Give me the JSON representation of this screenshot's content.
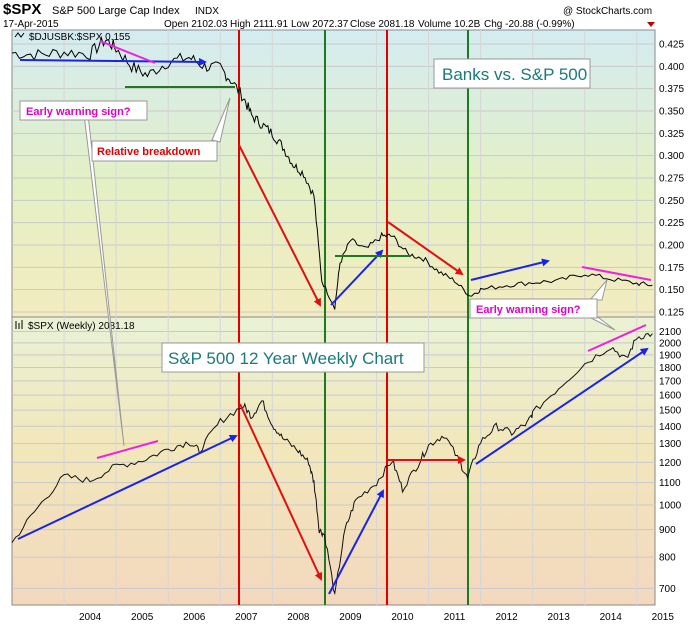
{
  "header": {
    "symbol": "$SPX",
    "name": "S&P 500 Large Cap Index",
    "exchange": "INDX",
    "date": "17-Apr-2015",
    "copyright": "@ StockCharts.com",
    "open": "Open 2102.03",
    "high": "High 2111.91",
    "low": "Low 2072.37",
    "close": "Close 2081.18",
    "volume": "Volume 10.2B",
    "chg": "Chg -20.88 (-0.99%)"
  },
  "colors": {
    "top_gradient_top": "#d4ecf2",
    "top_gradient_mid": "#e4f0c4",
    "top_gradient_bottom": "#f3ecc0",
    "bottom_gradient_top": "#e9f2d6",
    "bottom_gradient_mid": "#f2e7bb",
    "bottom_gradient_bottom": "#f3d8be",
    "red_line": "#e00000",
    "green_line": "#1e7a1e",
    "blue_arrow": "#1a24e6",
    "red_arrow": "#e01010",
    "magenta": "#f020e0",
    "title_text": "#1a7a7a",
    "callout_text": "#e000c8",
    "red_text": "#e00000"
  },
  "annotations": {
    "top_title": "Banks vs. S&P 500",
    "bottom_title": "S&P 500 12 Year Weekly Chart",
    "early_warning_1": "Early warning sign?",
    "relative_breakdown": "Relative breakdown",
    "early_warning_2": "Early warning sign?"
  },
  "chart_data": [
    {
      "type": "line",
      "series": [
        {
          "name": "$DJUSBK:$SPX 0.155"
        }
      ],
      "ylim": [
        0.125,
        0.425
      ],
      "y_ticks": [
        "0.425",
        "0.400",
        "0.375",
        "0.350",
        "0.325",
        "0.300",
        "0.275",
        "0.250",
        "0.225",
        "0.200",
        "0.175",
        "0.150",
        "0.125"
      ],
      "points": [
        [
          2003.0,
          0.415
        ],
        [
          2003.5,
          0.413
        ],
        [
          2004.0,
          0.416
        ],
        [
          2004.5,
          0.414
        ],
        [
          2004.8,
          0.43
        ],
        [
          2005.0,
          0.42
        ],
        [
          2005.3,
          0.4
        ],
        [
          2005.6,
          0.39
        ],
        [
          2006.0,
          0.405
        ],
        [
          2006.4,
          0.41
        ],
        [
          2006.7,
          0.4
        ],
        [
          2007.0,
          0.398
        ],
        [
          2007.2,
          0.385
        ],
        [
          2007.45,
          0.365
        ],
        [
          2007.6,
          0.345
        ],
        [
          2007.8,
          0.335
        ],
        [
          2008.0,
          0.325
        ],
        [
          2008.2,
          0.31
        ],
        [
          2008.4,
          0.29
        ],
        [
          2008.6,
          0.28
        ],
        [
          2008.8,
          0.255
        ],
        [
          2008.95,
          0.16
        ],
        [
          2009.2,
          0.13
        ],
        [
          2009.3,
          0.18
        ],
        [
          2009.5,
          0.205
        ],
        [
          2009.8,
          0.195
        ],
        [
          2010.1,
          0.21
        ],
        [
          2010.3,
          0.21
        ],
        [
          2010.6,
          0.19
        ],
        [
          2010.9,
          0.185
        ],
        [
          2011.2,
          0.17
        ],
        [
          2011.5,
          0.16
        ],
        [
          2011.8,
          0.143
        ],
        [
          2012.0,
          0.15
        ],
        [
          2012.5,
          0.155
        ],
        [
          2013.0,
          0.158
        ],
        [
          2013.5,
          0.16
        ],
        [
          2014.0,
          0.168
        ],
        [
          2014.5,
          0.162
        ],
        [
          2015.0,
          0.157
        ],
        [
          2015.3,
          0.155
        ]
      ]
    },
    {
      "type": "line",
      "series": [
        {
          "name": "$SPX (Weekly) 2081.18"
        }
      ],
      "ylim": [
        666,
        2150
      ],
      "log_scale": true,
      "y_ticks": [
        "2100",
        "2000",
        "1900",
        "1800",
        "1700",
        "1600",
        "1500",
        "1400",
        "1300",
        "1200",
        "1100",
        "1000",
        "900",
        "800",
        "700"
      ],
      "x_ticks": [
        "2004",
        "2005",
        "2006",
        "2007",
        "2008",
        "2009",
        "2010",
        "2011",
        "2012",
        "2013",
        "2014",
        "2015"
      ],
      "points": [
        [
          2003.0,
          850
        ],
        [
          2003.5,
          990
        ],
        [
          2004.0,
          1130
        ],
        [
          2004.5,
          1110
        ],
        [
          2005.0,
          1180
        ],
        [
          2005.5,
          1210
        ],
        [
          2006.0,
          1270
        ],
        [
          2006.4,
          1310
        ],
        [
          2006.6,
          1260
        ],
        [
          2007.0,
          1430
        ],
        [
          2007.45,
          1530
        ],
        [
          2007.6,
          1460
        ],
        [
          2007.8,
          1560
        ],
        [
          2008.0,
          1410
        ],
        [
          2008.2,
          1330
        ],
        [
          2008.5,
          1260
        ],
        [
          2008.7,
          1200
        ],
        [
          2008.8,
          1100
        ],
        [
          2008.9,
          900
        ],
        [
          2009.0,
          880
        ],
        [
          2009.2,
          676
        ],
        [
          2009.4,
          900
        ],
        [
          2009.6,
          1020
        ],
        [
          2010.0,
          1100
        ],
        [
          2010.3,
          1210
        ],
        [
          2010.5,
          1070
        ],
        [
          2010.8,
          1190
        ],
        [
          2011.0,
          1290
        ],
        [
          2011.3,
          1350
        ],
        [
          2011.6,
          1200
        ],
        [
          2011.75,
          1120
        ],
        [
          2012.0,
          1310
        ],
        [
          2012.3,
          1400
        ],
        [
          2012.6,
          1360
        ],
        [
          2012.9,
          1420
        ],
        [
          2013.0,
          1480
        ],
        [
          2013.5,
          1650
        ],
        [
          2014.0,
          1830
        ],
        [
          2014.5,
          1970
        ],
        [
          2014.8,
          1860
        ],
        [
          2015.0,
          2050
        ],
        [
          2015.3,
          2081
        ]
      ]
    }
  ]
}
